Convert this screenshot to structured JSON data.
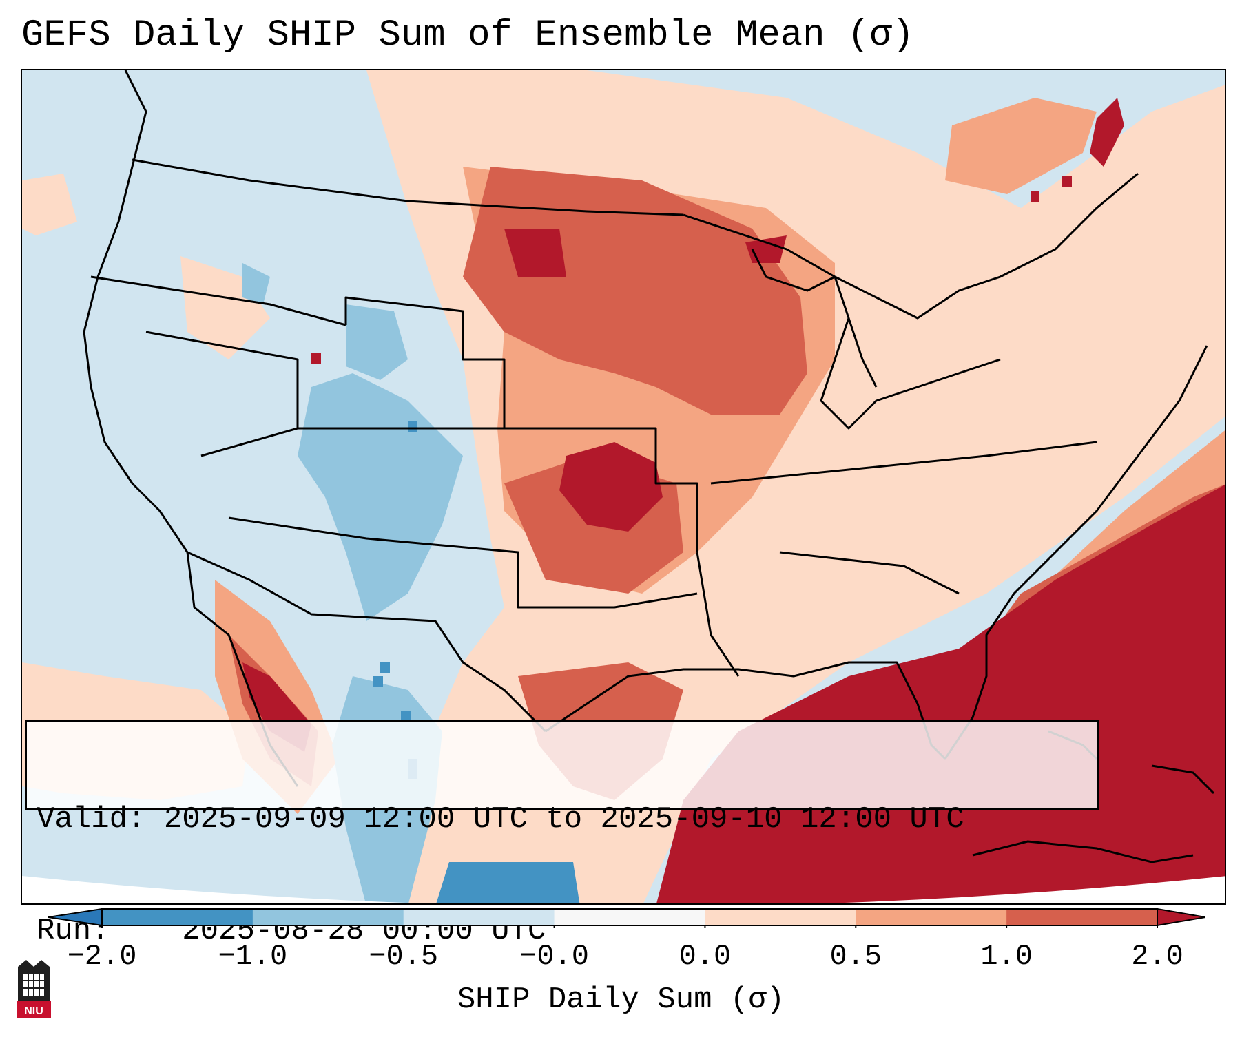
{
  "figure": {
    "title": "GEFS Daily SHIP Sum of Ensemble Mean (σ)",
    "valid_label": "Valid:",
    "valid_value": "2025-09-09 12:00 UTC to 2025-09-10 12:00 UTC",
    "run_label": "Run:",
    "run_value": "2025-08-28 00:00 UTC"
  },
  "colorbar": {
    "label": "SHIP Daily Sum (σ)",
    "ticks": [
      "−2.0",
      "−1.0",
      "−0.5",
      "−0.0",
      "0.0",
      "0.5",
      "1.0",
      "2.0"
    ],
    "colors": [
      "#2a78b8",
      "#4393c3",
      "#92c5de",
      "#d1e5f0",
      "#f7f7f7",
      "#fddbc7",
      "#f4a582",
      "#d6604d",
      "#b2182b"
    ],
    "extend": "both"
  },
  "logo": {
    "text": "NIU",
    "color": "#c8102e"
  }
}
